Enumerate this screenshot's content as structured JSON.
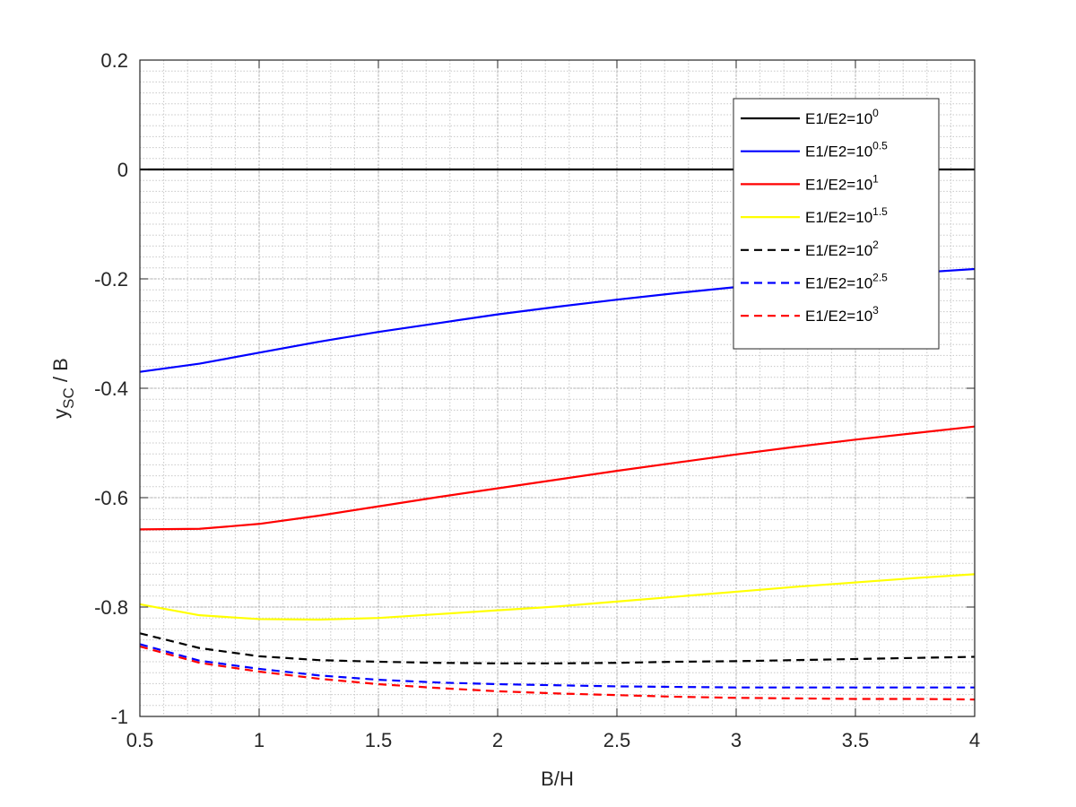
{
  "chart_data": {
    "type": "line",
    "xlabel": "B/H",
    "ylabel_main": "y",
    "ylabel_sub": "SC",
    "ylabel_tail": " / B",
    "xlim": [
      0.5,
      4
    ],
    "ylim": [
      -1,
      0.2
    ],
    "grid": "on (major and minor, dotted)",
    "legend_position": "top-right",
    "x_ticks": [
      {
        "value": 0.5,
        "label": "0.5"
      },
      {
        "value": 1,
        "label": "1"
      },
      {
        "value": 1.5,
        "label": "1.5"
      },
      {
        "value": 2,
        "label": "2"
      },
      {
        "value": 2.5,
        "label": "2.5"
      },
      {
        "value": 3,
        "label": "3"
      },
      {
        "value": 3.5,
        "label": "3.5"
      },
      {
        "value": 4,
        "label": "4"
      }
    ],
    "y_ticks": [
      {
        "value": 0.2,
        "label": "0.2"
      },
      {
        "value": 0,
        "label": "0"
      },
      {
        "value": -0.2,
        "label": "-0.2"
      },
      {
        "value": -0.4,
        "label": "-0.4"
      },
      {
        "value": -0.6,
        "label": "-0.6"
      },
      {
        "value": -0.8,
        "label": "-0.8"
      },
      {
        "value": -1,
        "label": "-1"
      }
    ],
    "x": [
      0.5,
      0.75,
      1.0,
      1.25,
      1.5,
      1.75,
      2.0,
      2.25,
      2.5,
      2.75,
      3.0,
      3.25,
      3.5,
      3.75,
      4.0
    ],
    "series": [
      {
        "name": "E1/E2=10",
        "exp": "0",
        "color": "#000000",
        "dash": "solid",
        "values": [
          0,
          0,
          0,
          0,
          0,
          0,
          0,
          0,
          0,
          0,
          0,
          0,
          0,
          0,
          0
        ]
      },
      {
        "name": "E1/E2=10",
        "exp": "0.5",
        "color": "#0000ff",
        "dash": "solid",
        "values": [
          -0.37,
          -0.355,
          -0.335,
          -0.315,
          -0.297,
          -0.281,
          -0.265,
          -0.251,
          -0.238,
          -0.226,
          -0.215,
          -0.205,
          -0.197,
          -0.189,
          -0.182
        ]
      },
      {
        "name": "E1/E2=10",
        "exp": "1",
        "color": "#ff0000",
        "dash": "solid",
        "values": [
          -0.658,
          -0.657,
          -0.648,
          -0.633,
          -0.616,
          -0.599,
          -0.583,
          -0.567,
          -0.551,
          -0.536,
          -0.521,
          -0.507,
          -0.494,
          -0.482,
          -0.47
        ]
      },
      {
        "name": "E1/E2=10",
        "exp": "1.5",
        "color": "#ffff00",
        "dash": "solid",
        "values": [
          -0.795,
          -0.815,
          -0.822,
          -0.823,
          -0.82,
          -0.813,
          -0.806,
          -0.799,
          -0.79,
          -0.781,
          -0.772,
          -0.763,
          -0.755,
          -0.747,
          -0.74
        ]
      },
      {
        "name": "E1/E2=10",
        "exp": "2",
        "color": "#000000",
        "dash": "dashed",
        "values": [
          -0.848,
          -0.875,
          -0.89,
          -0.897,
          -0.9,
          -0.902,
          -0.903,
          -0.903,
          -0.902,
          -0.9,
          -0.899,
          -0.897,
          -0.895,
          -0.893,
          -0.891
        ]
      },
      {
        "name": "E1/E2=10",
        "exp": "2.5",
        "color": "#0000ff",
        "dash": "dashed",
        "values": [
          -0.868,
          -0.898,
          -0.913,
          -0.925,
          -0.933,
          -0.938,
          -0.941,
          -0.943,
          -0.945,
          -0.946,
          -0.947,
          -0.947,
          -0.947,
          -0.947,
          -0.947
        ]
      },
      {
        "name": "E1/E2=10",
        "exp": "3",
        "color": "#ff0000",
        "dash": "dashed",
        "values": [
          -0.872,
          -0.902,
          -0.918,
          -0.931,
          -0.941,
          -0.948,
          -0.954,
          -0.958,
          -0.961,
          -0.964,
          -0.966,
          -0.967,
          -0.968,
          -0.968,
          -0.969
        ]
      }
    ]
  }
}
